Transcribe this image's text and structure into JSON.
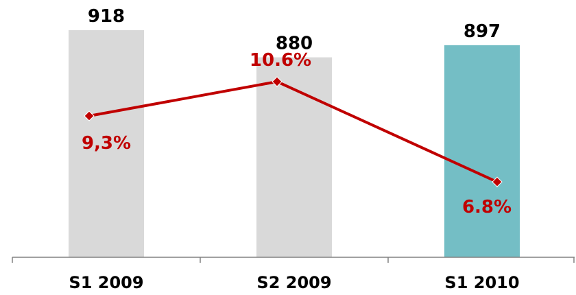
{
  "chart_data": {
    "type": "bar",
    "categories": [
      "S1 2009",
      "S2 2009",
      "S1 2010"
    ],
    "series": [
      {
        "type": "bar",
        "values": [
          918,
          880,
          897
        ],
        "value_labels": [
          "918",
          "880",
          "897"
        ],
        "colors": [
          "#d9d9d9",
          "#d9d9d9",
          "#74bec5"
        ]
      },
      {
        "type": "line",
        "values": [
          9.3,
          10.6,
          6.8
        ],
        "value_labels": [
          "9,3%",
          "10.6%",
          "6.8%"
        ],
        "color": "#c00000"
      }
    ]
  }
}
